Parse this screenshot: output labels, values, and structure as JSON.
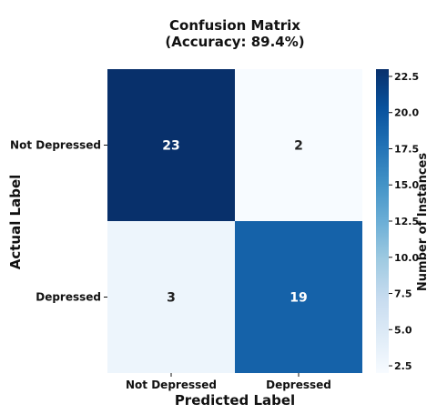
{
  "chart_data": {
    "type": "heatmap",
    "title_line1": "Confusion Matrix",
    "title_line2": "(Accuracy: 89.4%)",
    "xlabel": "Predicted Label",
    "ylabel": "Actual Label",
    "x_categories": [
      "Not Depressed",
      "Depressed"
    ],
    "y_categories": [
      "Not Depressed",
      "Depressed"
    ],
    "values": [
      [
        23,
        2
      ],
      [
        3,
        19
      ]
    ],
    "colormap": "Blues",
    "colorbar": {
      "label": "Number of Instances",
      "range": [
        2,
        23
      ],
      "ticks": [
        2.5,
        5.0,
        7.5,
        10.0,
        12.5,
        15.0,
        17.5,
        20.0,
        22.5
      ],
      "tick_labels": [
        "2.5",
        "5.0",
        "7.5",
        "10.0",
        "12.5",
        "15.0",
        "17.5",
        "20.0",
        "22.5"
      ]
    }
  }
}
